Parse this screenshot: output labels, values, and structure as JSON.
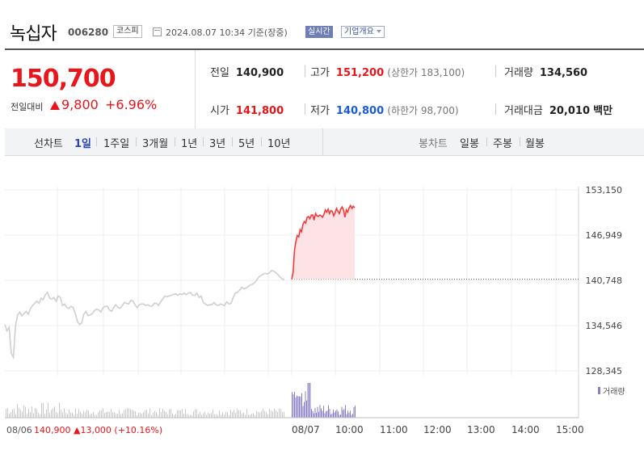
{
  "stock": {
    "name": "녹십자",
    "code": "006280",
    "market": "코스피",
    "datetime": "2024.08.07 10:34 기준(장중)",
    "realtime_label": "실시간",
    "company_info_label": "기업개요"
  },
  "quote": {
    "price": "150,700",
    "change_label": "전일대비",
    "change": "9,800",
    "change_pct": "+6.96%",
    "prev_close_label": "전일",
    "prev_close": "140,900",
    "high_label": "고가",
    "high": "151,200",
    "upper_limit": "(상한가 183,100)",
    "volume_label": "거래량",
    "volume": "134,560",
    "open_label": "시가",
    "open": "141,800",
    "low_label": "저가",
    "low": "140,800",
    "lower_limit": "(하한가 98,700)",
    "amount_label": "거래대금",
    "amount": "20,010",
    "amount_unit": "백만"
  },
  "tabs": {
    "line_label": "선차트",
    "line_periods": [
      "1일",
      "1주일",
      "3개월",
      "1년",
      "3년",
      "5년",
      "10년"
    ],
    "selected": "1일",
    "candle_label": "봉차트",
    "candle_periods": [
      "일봉",
      "주봉",
      "월봉"
    ]
  },
  "chart_data": {
    "type": "line",
    "y_ticks": [
      "153,150",
      "146,949",
      "140,748",
      "134,546",
      "128,345"
    ],
    "ylim": [
      128345,
      153150
    ],
    "x_ticks": [
      "08/07",
      "10:00",
      "11:00",
      "12:00",
      "13:00",
      "14:00",
      "15:00"
    ],
    "prev_day_label": "08/06",
    "prev_day_summary": "140,900 ▲13,000 (+10.16%)",
    "volume_legend": "거래량",
    "reference_line": 140900,
    "colors": {
      "today": "#f43b3b",
      "today_fill": "#fde3e5",
      "prev": "#cfcfcf",
      "volume_prev": "#c9c9c9",
      "volume_today": "#8a7fc4"
    },
    "series": [
      {
        "session": "08/06",
        "values": [
          134700,
          133800,
          134300,
          130800,
          130200,
          134500,
          136000,
          136400,
          135900,
          136200,
          136500,
          136100,
          136900,
          137300,
          137600,
          137900,
          137600,
          138300,
          138100,
          138800,
          139100,
          138300,
          138200,
          138400,
          137900,
          138600,
          138400,
          137300,
          137500,
          137000,
          136900,
          137200,
          137000,
          136200,
          135100,
          134700,
          134900,
          136100,
          136500,
          135900,
          136000,
          136200,
          136600,
          136800,
          136700,
          136400,
          137000,
          137200,
          137200,
          136700,
          136500,
          137000,
          137400,
          137000,
          136900,
          137300,
          137700,
          137600,
          137500,
          138000,
          137900,
          137400,
          137000,
          137400,
          137500,
          137500,
          137300,
          137400,
          137200,
          137200,
          137600,
          137600,
          137300,
          137800,
          138200,
          138600,
          138500,
          138600,
          138700,
          138800,
          138900,
          138700,
          138900,
          138800,
          139000,
          138800,
          139000,
          139100,
          138700,
          138700,
          139000,
          138400,
          138600,
          137700,
          137500,
          137300,
          137400,
          137400,
          137700,
          137400,
          137300,
          137500,
          137400,
          137300,
          137800,
          137500,
          137600,
          138400,
          139000,
          139100,
          139400,
          139800,
          139600,
          139700,
          139900,
          140100,
          140200,
          140400,
          140800,
          141200,
          141400,
          141600,
          141700,
          141600,
          141800,
          142100,
          142000,
          141800,
          141500,
          141200,
          140900,
          140900
        ]
      },
      {
        "session": "08/07",
        "values": [
          140900,
          141800,
          144900,
          146100,
          146900,
          146700,
          147700,
          147400,
          148400,
          148800,
          148600,
          149400,
          149500,
          149200,
          149700,
          149700,
          149000,
          149900,
          149600,
          149500,
          149700,
          149600,
          149400,
          149800,
          150400,
          150100,
          150500,
          149900,
          150300,
          150200,
          149600,
          150000,
          150600,
          150200,
          149900,
          150500,
          150800,
          150400,
          149400,
          150400,
          150100,
          150700,
          151000,
          150600,
          150900,
          150700
        ]
      }
    ]
  }
}
